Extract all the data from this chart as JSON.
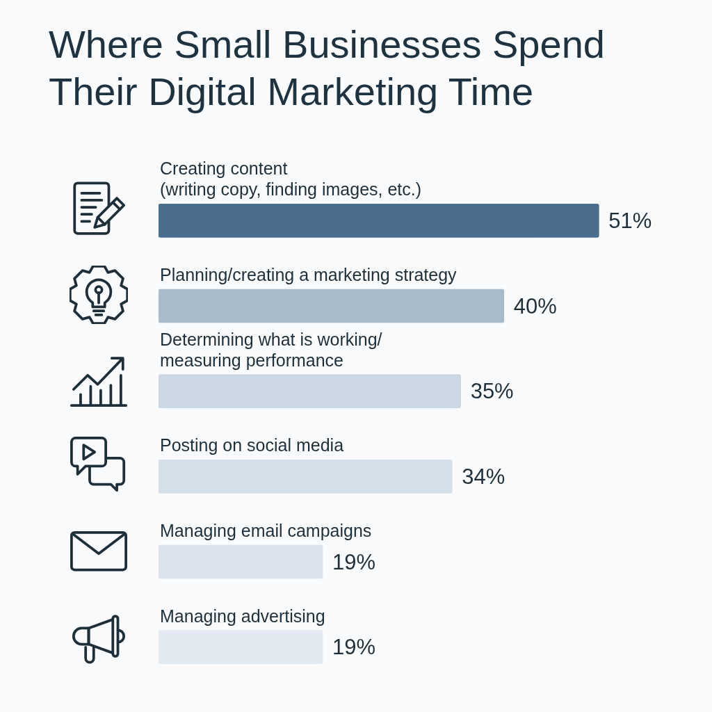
{
  "chart_data": {
    "type": "bar",
    "orientation": "horizontal",
    "title": "Where Small Businesses Spend Their Digital Marketing Time",
    "categories": [
      "Creating content\n(writing copy, finding images, etc.)",
      "Planning/creating a marketing strategy",
      "Determining what is working/\nmeasuring performance",
      "Posting on social media",
      "Managing email campaigns",
      "Managing advertising"
    ],
    "values": [
      51,
      40,
      35,
      34,
      19,
      19
    ],
    "colors": [
      "#4b6e8e",
      "#a9bacb",
      "#cbd7e3",
      "#d5dfe9",
      "#dbe4ec",
      "#e2e9f0"
    ],
    "value_labels": [
      "51%",
      "40%",
      "35%",
      "34%",
      "19%",
      "19%"
    ]
  }
}
